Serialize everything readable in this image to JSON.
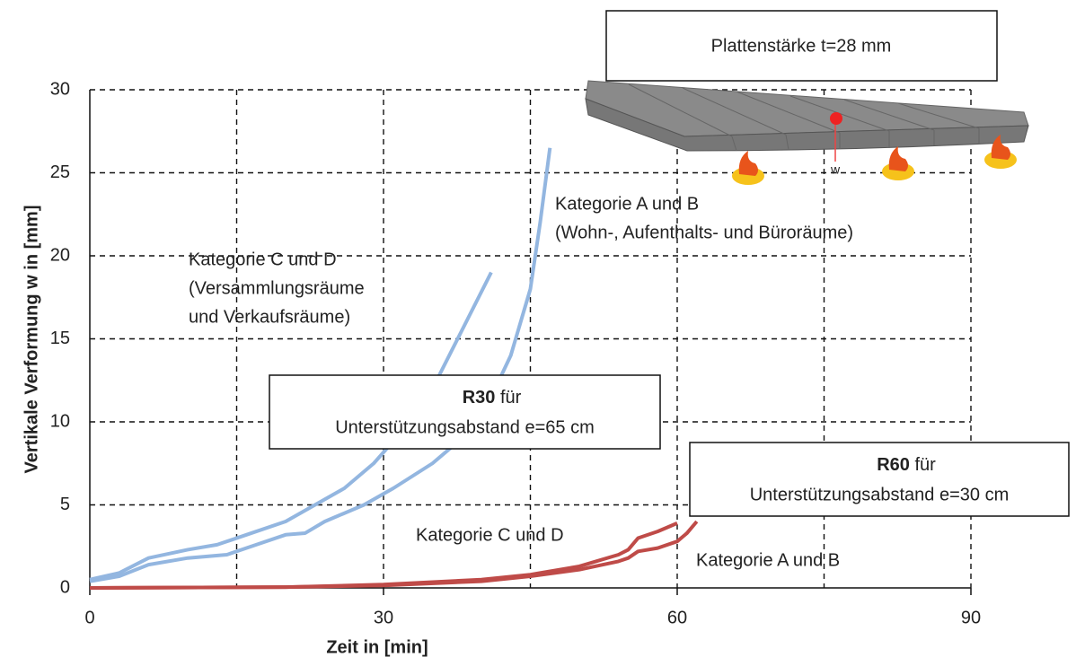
{
  "chart_data": {
    "type": "line",
    "x_label": "Zeit in [min]",
    "y_label": "Vertikale Verformung w in  [mm]",
    "xlim": [
      0,
      90
    ],
    "ylim": [
      0,
      30
    ],
    "xticks": [
      0,
      30,
      60,
      90
    ],
    "x_grid_lines": [
      15,
      30,
      45,
      60,
      75,
      90
    ],
    "yticks": [
      0,
      5,
      10,
      15,
      20,
      25,
      30
    ],
    "grid": true,
    "series": [
      {
        "name": "Kategorie C und D",
        "color": "#93b6e0",
        "x": [
          0,
          3,
          6,
          10,
          13,
          16,
          20,
          23,
          26,
          29,
          32,
          35,
          38,
          41
        ],
        "values": [
          0.5,
          0.9,
          1.8,
          2.3,
          2.6,
          3.2,
          4.0,
          5.0,
          6.0,
          7.5,
          9.5,
          12.0,
          15.5,
          19.0
        ]
      },
      {
        "name": "Kategorie A und B",
        "color": "#93b6e0",
        "x": [
          0,
          3,
          6,
          10,
          14,
          17,
          20,
          22,
          24,
          28,
          31,
          35,
          38,
          41,
          43,
          45,
          46,
          47
        ],
        "values": [
          0.4,
          0.7,
          1.4,
          1.8,
          2.0,
          2.6,
          3.2,
          3.3,
          4.0,
          5.0,
          6.0,
          7.5,
          9.0,
          11.5,
          14.0,
          18.0,
          22.0,
          26.5
        ]
      },
      {
        "name": "Kategorie C und D",
        "color": "#bf4b48",
        "x": [
          0,
          20,
          30,
          40,
          45,
          50,
          54,
          55,
          56,
          58,
          60
        ],
        "values": [
          0,
          0.05,
          0.2,
          0.5,
          0.8,
          1.3,
          2.0,
          2.3,
          3.0,
          3.4,
          3.9
        ]
      },
      {
        "name": "Kategorie A und B",
        "color": "#bf4b48",
        "x": [
          0,
          20,
          30,
          40,
          45,
          50,
          54,
          55,
          56,
          58,
          60,
          61,
          62
        ],
        "values": [
          0,
          0.05,
          0.15,
          0.4,
          0.7,
          1.1,
          1.6,
          1.8,
          2.2,
          2.4,
          2.8,
          3.3,
          4.0
        ]
      }
    ],
    "annotations": [
      [
        "Kategorie A und B",
        "(Wohn-, Aufenthalts- und Büroräume)"
      ],
      [
        "Kategorie C und D",
        "(Versammlungsräume",
        "und Verkaufsräume)"
      ]
    ],
    "boxes": [
      {
        "bold": "R30",
        "text": " für",
        "line2": "Unterstützungsabstand e=65 cm"
      },
      {
        "bold": "R60",
        "text": " für",
        "line2": "Unterstützungsabstand e=30 cm"
      }
    ],
    "plate_label": "Plattenstärke t=28 mm",
    "deflection_label": "w"
  }
}
